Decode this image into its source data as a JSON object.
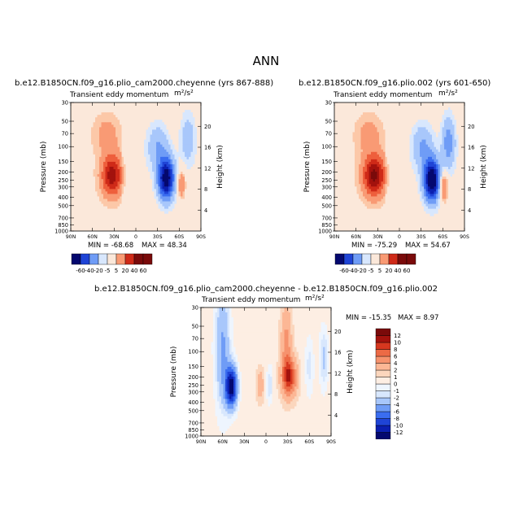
{
  "page": {
    "title": "ANN"
  },
  "chart_data": [
    {
      "type": "heatmap",
      "title": "b.e12.B1850CN.f09_g16.plio_cam2000.cheyenne (yrs 867-888)",
      "subtitle": "Transient eddy momentum",
      "units": "m²/s²",
      "ylabel": "Pressure (mb)",
      "ylabel_right": "Height (km)",
      "x_ticks": [
        "90N",
        "60N",
        "30N",
        "0",
        "30S",
        "60S",
        "90S"
      ],
      "y_ticks": [
        30,
        50,
        70,
        100,
        150,
        200,
        250,
        300,
        400,
        500,
        700,
        850,
        1000
      ],
      "y_right_ticks": [
        4,
        8,
        12,
        16,
        20
      ],
      "min_label": "MIN = -68.68",
      "max_label": "MAX = 48.34",
      "min": -68.68,
      "max": 48.34,
      "colorbar_levels": [
        -60,
        -40,
        -20,
        -5,
        5,
        20,
        40,
        60
      ]
    },
    {
      "type": "heatmap",
      "title": "b.e12.B1850CN.f09_g16.plio.002 (yrs 601-650)",
      "subtitle": "Transient eddy momentum",
      "units": "m²/s²",
      "ylabel": "Pressure (mb)",
      "ylabel_right": "Height (km)",
      "x_ticks": [
        "90N",
        "60N",
        "30N",
        "0",
        "30S",
        "60S",
        "90S"
      ],
      "y_ticks": [
        30,
        50,
        70,
        100,
        150,
        200,
        250,
        300,
        400,
        500,
        700,
        850,
        1000
      ],
      "y_right_ticks": [
        4,
        8,
        12,
        16,
        20
      ],
      "min_label": "MIN = -75.29",
      "max_label": "MAX = 54.67",
      "min": -75.29,
      "max": 54.67,
      "colorbar_levels": [
        -60,
        -40,
        -20,
        -5,
        5,
        20,
        40,
        60
      ]
    },
    {
      "type": "heatmap",
      "title": "b.e12.B1850CN.f09_g16.plio_cam2000.cheyenne - b.e12.B1850CN.f09_g16.plio.002",
      "subtitle": "Transient eddy momentum",
      "units": "m²/s²",
      "ylabel": "Pressure (mb)",
      "ylabel_right": "Height (km)",
      "x_ticks": [
        "90N",
        "60N",
        "30N",
        "0",
        "30S",
        "60S",
        "90S"
      ],
      "y_ticks": [
        30,
        50,
        70,
        100,
        150,
        200,
        250,
        300,
        400,
        500,
        700,
        850,
        1000
      ],
      "y_right_ticks": [
        4,
        8,
        12,
        16,
        20
      ],
      "min_label": "MIN = -15.35",
      "max_label": "MAX =   8.97",
      "min": -15.35,
      "max": 8.97,
      "colorbar_levels": [
        -12,
        -10,
        -8,
        -6,
        -4,
        -2,
        -1,
        0,
        1,
        2,
        4,
        6,
        8,
        10,
        12
      ]
    }
  ],
  "colors": {
    "panel_scale": [
      "#04086f",
      "#0b1fb0",
      "#1f44d6",
      "#3a6df0",
      "#6f9cf6",
      "#a8c7fb",
      "#d8e7fd",
      "#fbe8da",
      "#fcc8a8",
      "#f99a74",
      "#ee5f3c",
      "#cf2a18",
      "#a3120d",
      "#7a0a0a"
    ],
    "diff_scale": [
      "#04086f",
      "#0b1fb0",
      "#1f44d6",
      "#3a6df0",
      "#6f9cf6",
      "#a8c7fb",
      "#d8e7fd",
      "#eef5fe",
      "#fdeee3",
      "#fbd6bd",
      "#fcb795",
      "#f6926d",
      "#ec6a45",
      "#d6371f",
      "#a3120d",
      "#7a0a0a"
    ]
  }
}
